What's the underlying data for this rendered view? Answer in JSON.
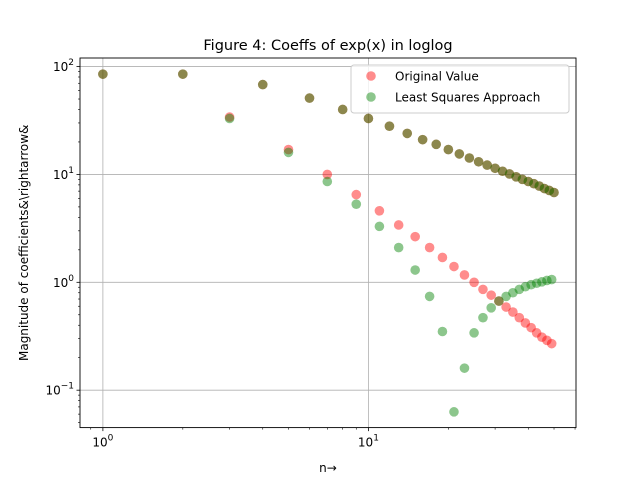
{
  "chart_data": {
    "type": "scatter",
    "title": "Figure 4: Coeffs of exp(x) in loglog",
    "xlabel": "n→",
    "ylabel": "Magnitude of coefficients&\\rightarrow&",
    "xscale": "log",
    "yscale": "log",
    "xlim": [
      0.82,
      60.5
    ],
    "ylim": [
      0.045,
      120
    ],
    "x_ticks": [
      {
        "value": 1,
        "base": "10",
        "exp": "0"
      },
      {
        "value": 10,
        "base": "10",
        "exp": "1"
      }
    ],
    "y_ticks": [
      {
        "value": 0.1,
        "base": "10",
        "exp": "−1"
      },
      {
        "value": 1,
        "base": "10",
        "exp": "0"
      },
      {
        "value": 10,
        "base": "10",
        "exp": "1"
      },
      {
        "value": 100,
        "base": "10",
        "exp": "2"
      }
    ],
    "grid": true,
    "legend_position": "top-right",
    "series": [
      {
        "name": "Original Value",
        "color": "#ff0000",
        "points": [
          [
            1,
            85
          ],
          [
            2,
            85
          ],
          [
            3,
            34
          ],
          [
            4,
            68
          ],
          [
            5,
            17
          ],
          [
            6,
            51
          ],
          [
            7,
            10
          ],
          [
            8,
            40
          ],
          [
            9,
            6.5
          ],
          [
            10,
            33
          ],
          [
            11,
            4.6
          ],
          [
            12,
            28
          ],
          [
            13,
            3.4
          ],
          [
            14,
            24
          ],
          [
            15,
            2.65
          ],
          [
            16,
            21
          ],
          [
            17,
            2.1
          ],
          [
            18,
            19
          ],
          [
            19,
            1.7
          ],
          [
            20,
            17
          ],
          [
            21,
            1.4
          ],
          [
            22,
            15.5
          ],
          [
            23,
            1.17
          ],
          [
            24,
            14.2
          ],
          [
            25,
            1.0
          ],
          [
            26,
            13.1
          ],
          [
            27,
            0.86
          ],
          [
            28,
            12.2
          ],
          [
            29,
            0.76
          ],
          [
            30,
            11.4
          ],
          [
            31,
            0.67
          ],
          [
            32,
            10.7
          ],
          [
            33,
            0.59
          ],
          [
            34,
            10.1
          ],
          [
            35,
            0.53
          ],
          [
            36,
            9.5
          ],
          [
            37,
            0.47
          ],
          [
            38,
            9.0
          ],
          [
            39,
            0.42
          ],
          [
            40,
            8.6
          ],
          [
            41,
            0.38
          ],
          [
            42,
            8.2
          ],
          [
            43,
            0.34
          ],
          [
            44,
            7.8
          ],
          [
            45,
            0.31
          ],
          [
            46,
            7.4
          ],
          [
            47,
            0.29
          ],
          [
            48,
            7.1
          ],
          [
            49,
            0.27
          ],
          [
            50,
            6.8
          ]
        ]
      },
      {
        "name": "Least Squares Approach",
        "color": "#008000",
        "points": [
          [
            1,
            85
          ],
          [
            2,
            85
          ],
          [
            3,
            33
          ],
          [
            4,
            68
          ],
          [
            5,
            16
          ],
          [
            6,
            51
          ],
          [
            7,
            8.6
          ],
          [
            8,
            40
          ],
          [
            9,
            5.3
          ],
          [
            10,
            33
          ],
          [
            11,
            3.3
          ],
          [
            12,
            28
          ],
          [
            13,
            2.1
          ],
          [
            14,
            24
          ],
          [
            15,
            1.3
          ],
          [
            16,
            21
          ],
          [
            17,
            0.74
          ],
          [
            18,
            19
          ],
          [
            19,
            0.35
          ],
          [
            20,
            17
          ],
          [
            21,
            0.063
          ],
          [
            22,
            15.5
          ],
          [
            23,
            0.16
          ],
          [
            24,
            14.2
          ],
          [
            25,
            0.34
          ],
          [
            26,
            13.1
          ],
          [
            27,
            0.47
          ],
          [
            28,
            12.2
          ],
          [
            29,
            0.58
          ],
          [
            30,
            11.4
          ],
          [
            31,
            0.67
          ],
          [
            32,
            10.7
          ],
          [
            33,
            0.74
          ],
          [
            34,
            10.1
          ],
          [
            35,
            0.8
          ],
          [
            36,
            9.5
          ],
          [
            37,
            0.86
          ],
          [
            38,
            9.0
          ],
          [
            39,
            0.91
          ],
          [
            40,
            8.6
          ],
          [
            41,
            0.95
          ],
          [
            42,
            8.2
          ],
          [
            43,
            0.98
          ],
          [
            44,
            7.8
          ],
          [
            45,
            1.01
          ],
          [
            46,
            7.4
          ],
          [
            47,
            1.04
          ],
          [
            48,
            7.1
          ],
          [
            49,
            1.06
          ],
          [
            50,
            6.8
          ]
        ]
      }
    ]
  }
}
